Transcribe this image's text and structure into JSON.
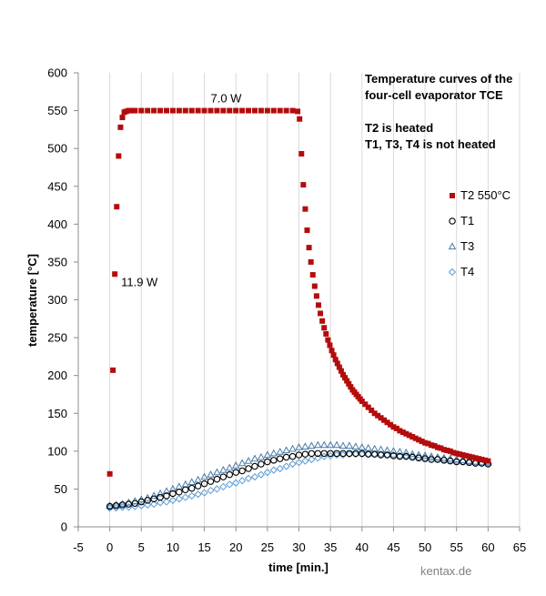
{
  "chart_data": {
    "type": "scatter",
    "title_lines": [
      "Temperature curves of the",
      "four-cell evaporator TCE",
      "",
      "T2 is heated",
      "T1, T3, T4 is not heated"
    ],
    "xlabel": "time [min.]",
    "ylabel": "temperature [°C]",
    "xlim": [
      -5,
      65
    ],
    "ylim": [
      0,
      600
    ],
    "xticks": [
      -5,
      0,
      5,
      10,
      15,
      20,
      25,
      30,
      35,
      40,
      45,
      50,
      55,
      60,
      65
    ],
    "yticks": [
      0,
      50,
      100,
      150,
      200,
      250,
      300,
      350,
      400,
      450,
      500,
      550,
      600
    ],
    "vertical_gridlines": true,
    "legend_position": "right",
    "annotations": [
      {
        "text": "7.0 W",
        "x": 16,
        "y": 561
      },
      {
        "text": "11.9 W",
        "x": 1.8,
        "y": 318
      }
    ],
    "series": [
      {
        "name": "T2 550°C",
        "marker": "square-filled",
        "color": "#b40c0c",
        "x": [
          0.0,
          0.5,
          0.8,
          1.1,
          1.4,
          1.7,
          2.0,
          2.3,
          2.6,
          3.0,
          3.5,
          4.0,
          5.0,
          6.0,
          7.0,
          8.0,
          9.0,
          10.0,
          11.0,
          12.0,
          13.0,
          14.0,
          15.0,
          16.0,
          17.0,
          18.0,
          19.0,
          20.0,
          21.0,
          22.0,
          23.0,
          24.0,
          25.0,
          26.0,
          27.0,
          28.0,
          29.0,
          29.8,
          30.1,
          30.4,
          30.7,
          31.0,
          31.3,
          31.6,
          31.9,
          32.2,
          32.5,
          32.8,
          33.1,
          33.4,
          33.7,
          34.0,
          34.3,
          34.6,
          34.9,
          35.2,
          35.5,
          35.8,
          36.1,
          36.4,
          36.7,
          37.0,
          37.3,
          37.6,
          37.9,
          38.2,
          38.5,
          38.8,
          39.1,
          39.4,
          39.7,
          40.0,
          40.5,
          41.0,
          41.5,
          42.0,
          42.5,
          43.0,
          43.5,
          44.0,
          44.5,
          45.0,
          45.5,
          46.0,
          46.5,
          47.0,
          47.5,
          48.0,
          48.5,
          49.0,
          49.5,
          50.0,
          50.5,
          51.0,
          51.5,
          52.0,
          52.5,
          53.0,
          53.5,
          54.0,
          54.5,
          55.0,
          55.5,
          56.0,
          56.5,
          57.0,
          57.5,
          58.0,
          58.5,
          59.0,
          59.5,
          60.0
        ],
        "y": [
          70,
          207,
          334,
          423,
          490,
          528,
          541,
          548,
          549,
          550,
          550,
          550,
          550,
          550,
          550,
          550,
          550,
          550,
          550,
          550,
          550,
          550,
          550,
          550,
          550,
          550,
          550,
          550,
          550,
          550,
          550,
          550,
          550,
          550,
          550,
          550,
          550,
          549,
          539,
          493,
          452,
          420,
          392,
          369,
          350,
          333,
          318,
          305,
          293,
          282,
          272,
          263,
          255,
          247,
          240,
          233,
          227,
          221,
          216,
          211,
          206,
          201,
          197,
          193,
          189,
          185,
          181,
          178,
          175,
          172,
          169,
          166,
          162,
          158,
          154,
          150,
          147,
          144,
          141,
          138,
          135,
          132,
          130,
          127,
          125,
          123,
          121,
          119,
          117,
          115,
          113,
          111,
          110,
          108,
          107,
          105,
          104,
          102,
          101,
          100,
          98,
          97,
          96,
          95,
          94,
          93,
          92,
          91,
          90,
          89,
          88,
          87
        ]
      },
      {
        "name": "T1",
        "marker": "circle-open",
        "color": "#000000",
        "x": [
          0,
          1,
          2,
          3,
          4,
          5,
          6,
          7,
          8,
          9,
          10,
          11,
          12,
          13,
          14,
          15,
          16,
          17,
          18,
          19,
          20,
          21,
          22,
          23,
          24,
          25,
          26,
          27,
          28,
          29,
          30,
          31,
          32,
          33,
          34,
          35,
          36,
          37,
          38,
          39,
          40,
          41,
          42,
          43,
          44,
          45,
          46,
          47,
          48,
          49,
          50,
          51,
          52,
          53,
          54,
          55,
          56,
          57,
          58,
          59,
          60
        ],
        "y": [
          27,
          28,
          29,
          30,
          31,
          33,
          35,
          37,
          39,
          41,
          44,
          46,
          49,
          51,
          54,
          57,
          60,
          63,
          66,
          69,
          72,
          74,
          77,
          80,
          83,
          86,
          88,
          90,
          92,
          93,
          95,
          96,
          97,
          97,
          97,
          97,
          97,
          97,
          97,
          97,
          97,
          96,
          96,
          95,
          95,
          94,
          93,
          93,
          92,
          91,
          90,
          89,
          89,
          88,
          87,
          86,
          86,
          85,
          84,
          84,
          83
        ]
      },
      {
        "name": "T3",
        "marker": "triangle-open",
        "color": "#4a7aa8",
        "x": [
          0,
          1,
          2,
          3,
          4,
          5,
          6,
          7,
          8,
          9,
          10,
          11,
          12,
          13,
          14,
          15,
          16,
          17,
          18,
          19,
          20,
          21,
          22,
          23,
          24,
          25,
          26,
          27,
          28,
          29,
          30,
          31,
          32,
          33,
          34,
          35,
          36,
          37,
          38,
          39,
          40,
          41,
          42,
          43,
          44,
          45,
          46,
          47,
          48,
          49,
          50,
          51,
          52,
          53,
          54,
          55,
          56,
          57,
          58,
          59,
          60
        ],
        "y": [
          28,
          29,
          30,
          32,
          34,
          36,
          38,
          41,
          44,
          47,
          50,
          53,
          56,
          59,
          62,
          66,
          69,
          72,
          75,
          78,
          81,
          84,
          87,
          90,
          92,
          95,
          97,
          99,
          101,
          103,
          105,
          106,
          107,
          108,
          108,
          108,
          108,
          107,
          107,
          106,
          105,
          104,
          103,
          102,
          101,
          100,
          99,
          98,
          96,
          95,
          94,
          93,
          92,
          91,
          90,
          89,
          88,
          87,
          86,
          85,
          85
        ]
      },
      {
        "name": "T4",
        "marker": "diamond-open",
        "color": "#5b9bd5",
        "x": [
          0,
          1,
          2,
          3,
          4,
          5,
          6,
          7,
          8,
          9,
          10,
          11,
          12,
          13,
          14,
          15,
          16,
          17,
          18,
          19,
          20,
          21,
          22,
          23,
          24,
          25,
          26,
          27,
          28,
          29,
          30,
          31,
          32,
          33,
          34,
          35,
          36,
          37,
          38,
          39,
          40,
          41,
          42,
          43,
          44,
          45,
          46,
          47,
          48,
          49,
          50,
          51,
          52,
          53,
          54,
          55,
          56,
          57,
          58,
          59,
          60
        ],
        "y": [
          25,
          25,
          26,
          26,
          27,
          28,
          29,
          30,
          32,
          33,
          35,
          37,
          39,
          41,
          43,
          45,
          48,
          50,
          53,
          56,
          58,
          61,
          64,
          66,
          69,
          72,
          75,
          77,
          80,
          83,
          85,
          87,
          89,
          91,
          93,
          94,
          95,
          95,
          96,
          96,
          96,
          96,
          96,
          96,
          95,
          95,
          94,
          94,
          93,
          92,
          91,
          91,
          90,
          89,
          88,
          87,
          86,
          86,
          85,
          84,
          84
        ]
      }
    ]
  },
  "watermark": "kentax.de"
}
